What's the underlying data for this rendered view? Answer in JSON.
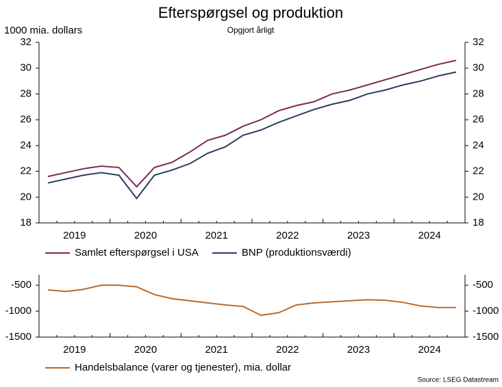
{
  "chart_data": [
    {
      "type": "line",
      "title": "Efterspørgsel og produktion",
      "subtitle": "Opgjort årligt",
      "y_label": "1000 mia. dollars",
      "categories": [
        "2019",
        null,
        null,
        null,
        "2020",
        null,
        null,
        null,
        "2021",
        null,
        null,
        null,
        "2022",
        null,
        null,
        null,
        "2023",
        null,
        null,
        null,
        "2024",
        null,
        null,
        null
      ],
      "series": [
        {
          "name": "Samlet efterspørgsel i USA",
          "color": "#7b2a4a",
          "values": [
            21.6,
            21.9,
            22.2,
            22.4,
            22.3,
            20.8,
            22.3,
            22.7,
            23.5,
            24.4,
            24.8,
            25.5,
            26.0,
            26.7,
            27.1,
            27.4,
            28.0,
            28.3,
            28.7,
            29.1,
            29.5,
            29.9,
            30.3,
            30.6
          ]
        },
        {
          "name": "BNP (produktionsværdi)",
          "color": "#2e3a5c",
          "values": [
            21.1,
            21.4,
            21.7,
            21.9,
            21.7,
            19.9,
            21.7,
            22.1,
            22.6,
            23.4,
            23.9,
            24.8,
            25.2,
            25.8,
            26.3,
            26.8,
            27.2,
            27.5,
            28.0,
            28.3,
            28.7,
            29.0,
            29.4,
            29.7
          ]
        }
      ],
      "ylim": [
        18,
        32
      ],
      "yticks": [
        18,
        20,
        22,
        24,
        26,
        28,
        30,
        32
      ]
    },
    {
      "type": "line",
      "categories": [
        "2019",
        null,
        null,
        null,
        "2020",
        null,
        null,
        null,
        "2021",
        null,
        null,
        null,
        "2022",
        null,
        null,
        null,
        "2023",
        null,
        null,
        null,
        "2024",
        null,
        null,
        null
      ],
      "series": [
        {
          "name": "Handelsbalance (varer og tjenester), mia. dollar",
          "color": "#b8692a",
          "values": [
            -590,
            -620,
            -580,
            -500,
            -500,
            -530,
            -680,
            -760,
            -800,
            -840,
            -880,
            -910,
            -1080,
            -1030,
            -880,
            -840,
            -820,
            -800,
            -780,
            -790,
            -830,
            -900,
            -930,
            -930
          ]
        }
      ],
      "ylim": [
        -1500,
        -300
      ],
      "yticks": [
        -1500,
        -1000,
        -500
      ],
      "note": "Source: LSEG Datastream"
    }
  ]
}
